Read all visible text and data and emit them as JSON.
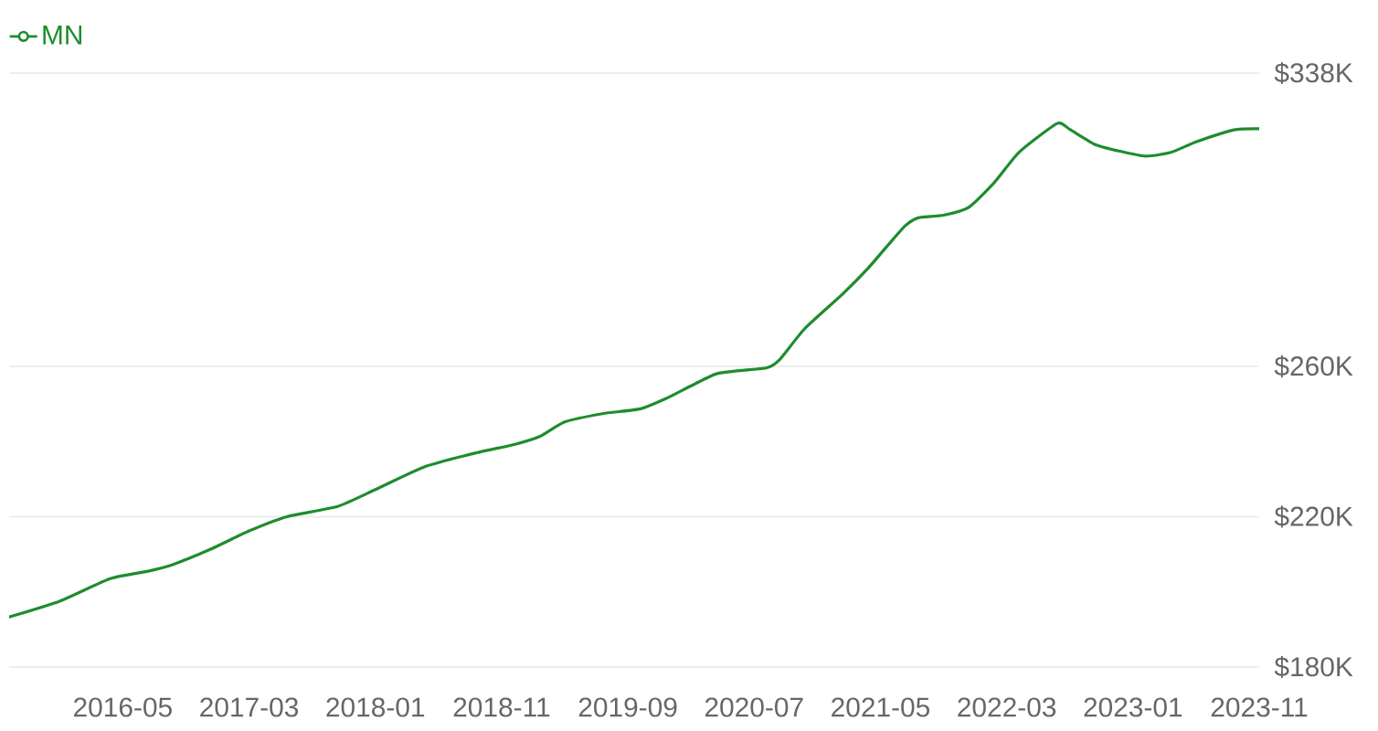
{
  "chart_data": {
    "type": "line",
    "x": [
      "2015-08",
      "2015-12",
      "2016-04",
      "2016-07",
      "2016-09",
      "2016-12",
      "2017-03",
      "2017-06",
      "2017-10",
      "2018-01",
      "2018-05",
      "2018-09",
      "2018-12",
      "2019-02",
      "2019-04",
      "2019-07",
      "2019-10",
      "2019-12",
      "2020-02",
      "2020-04",
      "2020-06",
      "2020-08",
      "2020-09",
      "2020-11",
      "2021-02",
      "2021-04",
      "2021-06",
      "2021-07",
      "2021-08",
      "2021-10",
      "2021-12",
      "2022-02",
      "2022-04",
      "2022-07",
      "2022-08",
      "2022-10",
      "2022-12",
      "2023-02",
      "2023-04",
      "2023-06",
      "2023-09",
      "2023-11"
    ],
    "series": [
      {
        "name": "MN",
        "color": "#1e8c2e",
        "values": [
          193.3,
          197.5,
          203.5,
          205.5,
          207.3,
          211.4,
          216.2,
          220.0,
          222.7,
          227.2,
          233.4,
          237.0,
          239.2,
          241.3,
          245.2,
          247.4,
          248.7,
          251.4,
          254.8,
          258.0,
          258.9,
          259.6,
          261.7,
          270.0,
          279.2,
          286.0,
          293.8,
          297.5,
          299.5,
          300.2,
          302.3,
          308.8,
          317.0,
          324.6,
          323.0,
          319.0,
          317.2,
          315.9,
          316.9,
          319.7,
          322.9,
          323.2
        ]
      }
    ],
    "xlim": [
      "2015-08",
      "2023-11"
    ],
    "xticks": [
      "2016-05",
      "2017-03",
      "2018-01",
      "2018-11",
      "2019-09",
      "2020-07",
      "2021-05",
      "2022-03",
      "2023-01",
      "2023-11"
    ],
    "ylim": [
      180,
      338
    ],
    "yticks": [
      {
        "value": 180,
        "label": "$180K"
      },
      {
        "value": 220,
        "label": "$220K"
      },
      {
        "value": 260,
        "label": "$260K"
      },
      {
        "value": 338,
        "label": "$338K"
      }
    ],
    "grid": "y",
    "legend": "top left"
  }
}
